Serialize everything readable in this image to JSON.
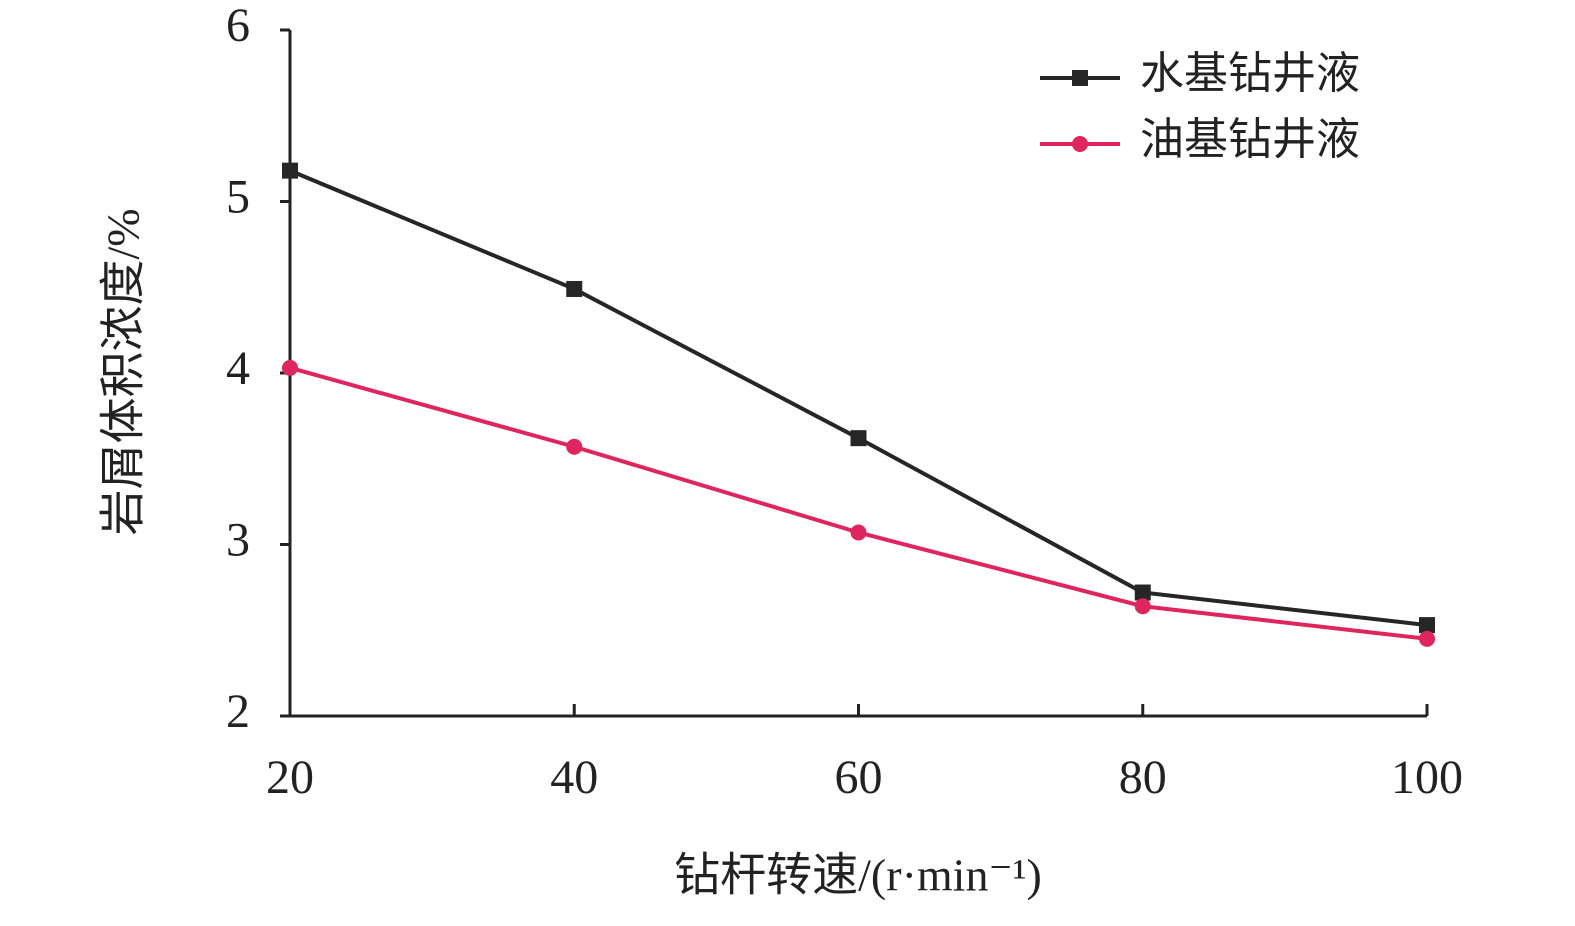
{
  "chart_data": {
    "type": "line",
    "x_label": "钻杆转速/(r·min⁻¹)",
    "y_label": "岩屑体积浓度/%",
    "x": [
      20,
      40,
      60,
      80,
      100
    ],
    "xlim": [
      20,
      100
    ],
    "xticks": [
      20,
      40,
      60,
      80,
      100
    ],
    "ylim": [
      2,
      6
    ],
    "yticks": [
      2,
      3,
      4,
      5,
      6
    ],
    "grid": false,
    "legend": "upper right",
    "series": [
      {
        "name": "水基钻井液",
        "color": "#262626",
        "marker": "square",
        "values": [
          5.18,
          4.49,
          3.62,
          2.72,
          2.53
        ]
      },
      {
        "name": "油基钻井液",
        "color": "#e0245e",
        "marker": "circle",
        "values": [
          4.03,
          3.57,
          3.07,
          2.64,
          2.45
        ]
      }
    ]
  }
}
